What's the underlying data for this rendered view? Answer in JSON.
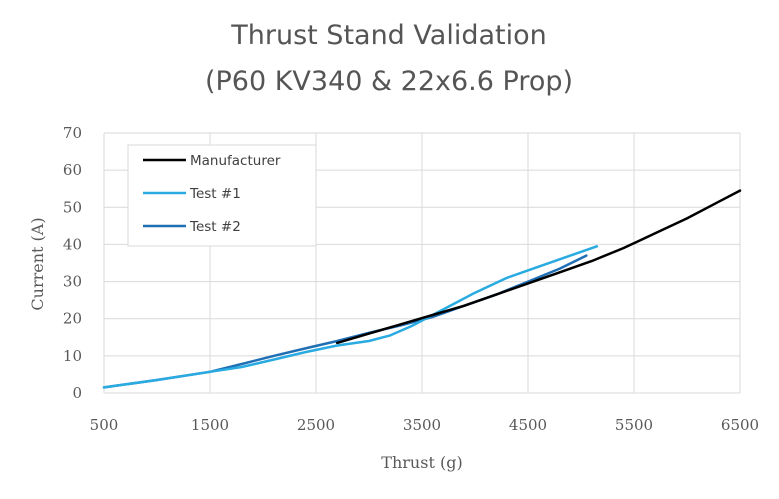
{
  "chart_data": {
    "type": "line",
    "title": "Thrust Stand Validation",
    "subtitle": "(P60 KV340 & 22x6.6 Prop)",
    "xlabel": "Thrust (g)",
    "ylabel": "Current (A)",
    "xlim": [
      500,
      6500
    ],
    "ylim": [
      0,
      70
    ],
    "xticks": [
      "500",
      "1500",
      "2500",
      "3500",
      "4500",
      "5500",
      "6500"
    ],
    "yticks": [
      "0",
      "10",
      "20",
      "30",
      "40",
      "50",
      "60",
      "70"
    ],
    "grid": true,
    "legend": "top-left",
    "series": [
      {
        "name": "Manufacturer",
        "color": "#000000",
        "x": [
          2700,
          3000,
          3300,
          3600,
          3900,
          4200,
          4500,
          4800,
          5100,
          5400,
          5700,
          6000,
          6300,
          6500
        ],
        "y": [
          13.5,
          16,
          18.5,
          21,
          23.5,
          26.5,
          29.5,
          32.5,
          35.5,
          39,
          43,
          47,
          51.5,
          54.5
        ]
      },
      {
        "name": "Test #1",
        "color": "#29abe2",
        "x": [
          500,
          1000,
          1500,
          1800,
          2100,
          2400,
          2700,
          3000,
          3200,
          3400,
          3600,
          3800,
          4000,
          4300,
          4600,
          4900,
          5150
        ],
        "y": [
          1.5,
          3.5,
          5.7,
          7,
          9,
          11,
          12.8,
          14,
          15.5,
          18,
          21,
          24,
          27,
          31,
          34,
          37,
          39.5
        ]
      },
      {
        "name": "Test #2",
        "color": "#1f6fb4",
        "x": [
          500,
          1000,
          1500,
          1800,
          2100,
          2400,
          2700,
          3000,
          3300,
          3600,
          3900,
          4200,
          4500,
          4800,
          5050
        ],
        "y": [
          1.5,
          3.5,
          5.7,
          7.8,
          10,
          12,
          14,
          16.2,
          18.2,
          20.5,
          23.5,
          26.5,
          30,
          33.5,
          37
        ]
      }
    ]
  }
}
